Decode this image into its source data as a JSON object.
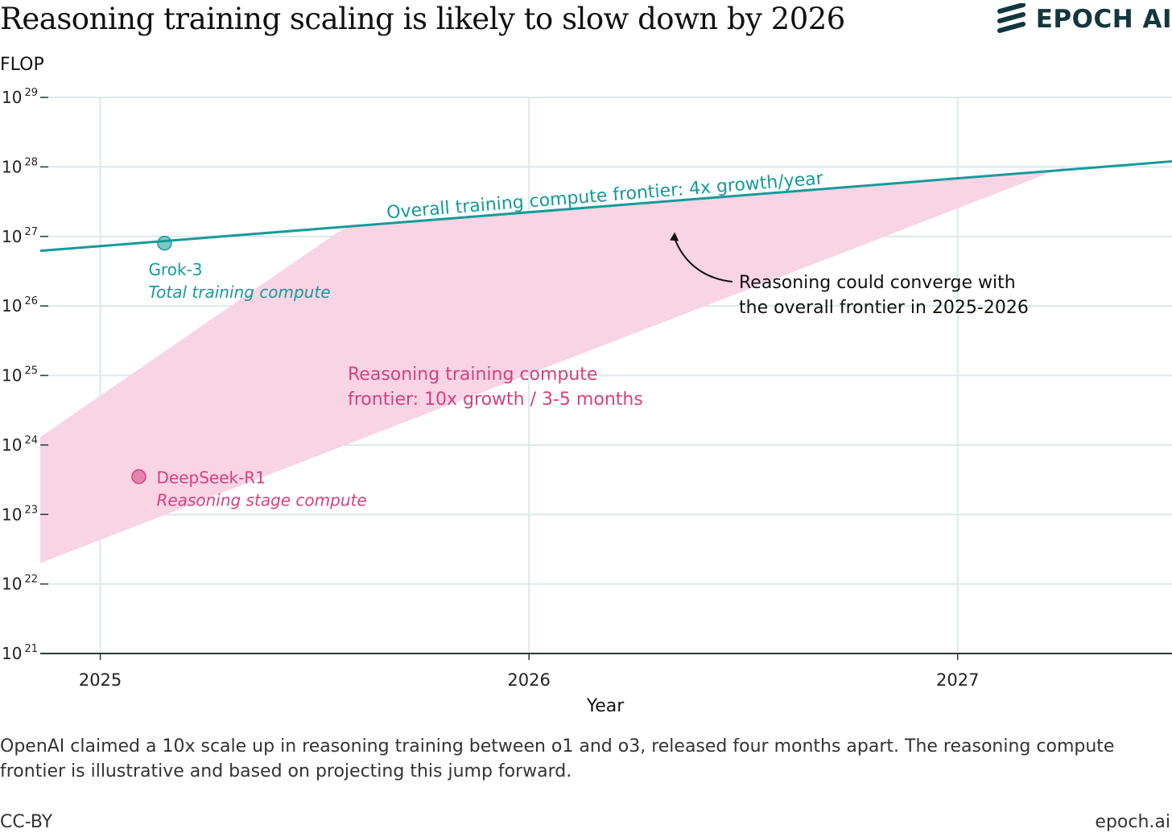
{
  "header": {
    "title": "Reasoning training scaling is likely to slow down by 2026",
    "logo_text": "EPOCH AI",
    "logo_icon": "epoch-stripes-icon"
  },
  "footer": {
    "caption": "OpenAI claimed a 10x scale up in reasoning training between o1 and o3, released four months apart. The reasoning compute frontier is illustrative and based on projecting this jump forward.",
    "license": "CC-BY",
    "site": "epoch.ai"
  },
  "colors": {
    "teal": "#159a9a",
    "pink": "#d6407f",
    "pink_fill": "#f8d4e4",
    "grid": "#dce8ea",
    "axis": "#2a3a3c"
  },
  "chart_data": {
    "type": "line",
    "xlabel": "Year",
    "ylabel": "FLOP",
    "y_scale": "log10",
    "xlim": [
      2024.86,
      2027.5
    ],
    "ylim_exponent": [
      21,
      29
    ],
    "x_ticks": [
      2025,
      2026,
      2027
    ],
    "y_tick_exponents": [
      21,
      22,
      23,
      24,
      25,
      26,
      27,
      28,
      29
    ],
    "grid": true,
    "series": [
      {
        "name": "Overall training compute frontier: 4x growth/year",
        "kind": "line",
        "color": "#159a9a",
        "points": [
          [
            2024.86,
            6.2e+26
          ],
          [
            2027.5,
            1.2e+28
          ]
        ]
      },
      {
        "name": "Reasoning training compute frontier: 10x growth / 3-5 months",
        "kind": "band",
        "color": "#f8d4e4",
        "upper": [
          [
            2024.86,
            1.3e+24
          ],
          [
            2025.54,
            1e+27
          ]
        ],
        "lower": [
          [
            2024.86,
            2e+22
          ],
          [
            2027.25,
            1e+28
          ]
        ],
        "capped_by": "Overall training compute frontier: 4x growth/year"
      }
    ],
    "points": [
      {
        "name": "Grok-3",
        "sublabel": "Total training compute",
        "x": 2025.15,
        "y": 8e+26,
        "color": "#159a9a"
      },
      {
        "name": "DeepSeek-R1",
        "sublabel": "Reasoning stage compute",
        "x": 2025.09,
        "y": 3.5e+23,
        "color": "#d6407f"
      }
    ],
    "annotations": [
      {
        "lines": [
          "Overall training compute frontier: 4x growth/year"
        ],
        "color": "#159a9a"
      },
      {
        "lines": [
          "Reasoning training compute",
          "frontier: 10x growth / 3-5 months"
        ],
        "color": "#d6407f"
      },
      {
        "lines": [
          "Reasoning could converge with",
          "the overall frontier in 2025-2026"
        ],
        "color": "#111111",
        "arrow_to": [
          2026.34,
          1.5e+27
        ]
      }
    ]
  }
}
